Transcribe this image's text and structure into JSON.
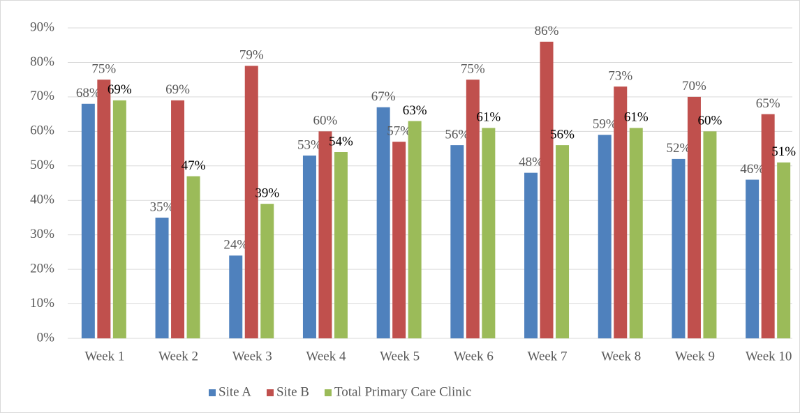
{
  "chart_data": {
    "type": "bar",
    "categories": [
      "Week 1",
      "Week 2",
      "Week 3",
      "Week 4",
      "Week 5",
      "Week 6",
      "Week 7",
      "Week 8",
      "Week 9",
      "Week 10"
    ],
    "series": [
      {
        "name": "Site A",
        "color": "#4f81bd",
        "values": [
          68,
          35,
          24,
          53,
          67,
          56,
          48,
          59,
          52,
          46
        ],
        "value_labels": [
          "68%",
          "35%",
          "24%",
          "53%",
          "67%",
          "56%",
          "48%",
          "59%",
          "52%",
          "46%"
        ]
      },
      {
        "name": "Site B",
        "color": "#c0504d",
        "values": [
          75,
          69,
          79,
          60,
          57,
          75,
          86,
          73,
          70,
          65
        ],
        "value_labels": [
          "75%",
          "69%",
          "79%",
          "60%",
          "57%",
          "75%",
          "86%",
          "73%",
          "70%",
          "65%"
        ]
      },
      {
        "name": "Total Primary Care Clinic",
        "color": "#9bbb59",
        "values": [
          69,
          47,
          39,
          54,
          63,
          61,
          56,
          61,
          60,
          51
        ],
        "value_labels": [
          "69%",
          "47%",
          "39%",
          "54%",
          "63%",
          "61%",
          "56%",
          "61%",
          "60%",
          "51%"
        ]
      }
    ],
    "ylim": [
      0,
      90
    ],
    "yticks": [
      {
        "value": 0,
        "label": "0%"
      },
      {
        "value": 10,
        "label": "10%"
      },
      {
        "value": 20,
        "label": "20%"
      },
      {
        "value": 30,
        "label": "30%"
      },
      {
        "value": 40,
        "label": "40%"
      },
      {
        "value": 50,
        "label": "50%"
      },
      {
        "value": 60,
        "label": "60%"
      },
      {
        "value": 70,
        "label": "70%"
      },
      {
        "value": 80,
        "label": "80%"
      },
      {
        "value": 90,
        "label": "90%"
      }
    ],
    "grid": true,
    "legend": "bottom"
  }
}
